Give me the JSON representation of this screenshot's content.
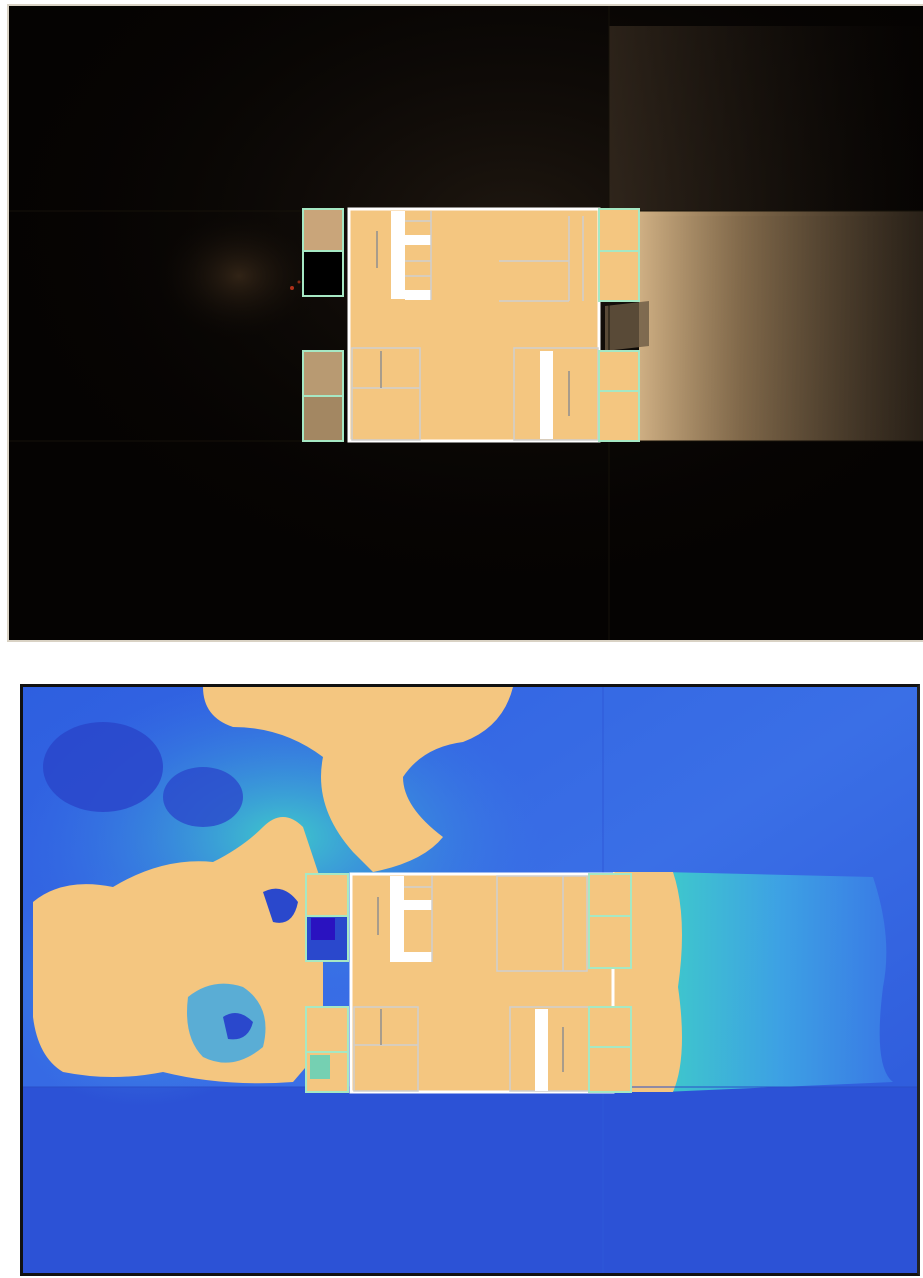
{
  "colors": {
    "room_fill": "#f4c680",
    "wall": "#cfcfcf",
    "outline": "#ffffff",
    "frame_green": "#a6e8c4",
    "smoke_background": "#050302",
    "smoke_plume": "#b89a72",
    "field_low": "#2f5be0",
    "field_mid": "#3fd4c8",
    "field_high": "#f4c680",
    "field_deep": "#2a12c0"
  }
}
